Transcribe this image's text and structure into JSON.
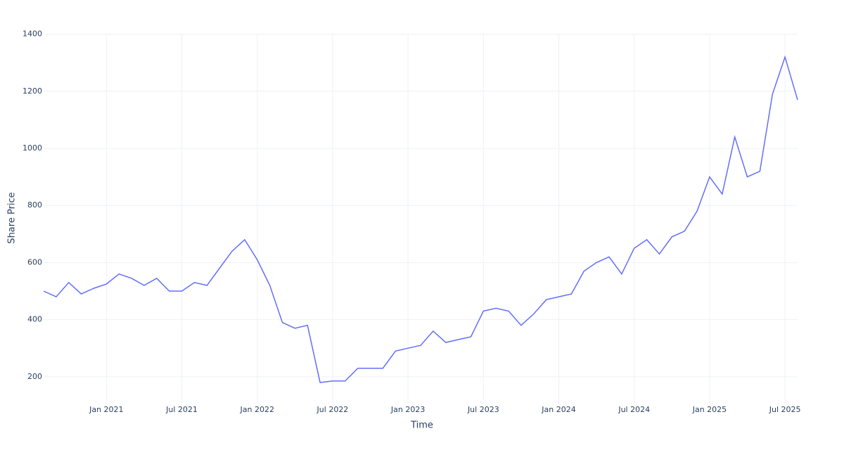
{
  "chart_data": {
    "type": "line",
    "x_label": "Time",
    "y_label": "Share Price",
    "x": [
      "2020-08",
      "2020-09",
      "2020-10",
      "2020-11",
      "2020-12",
      "2021-01",
      "2021-02",
      "2021-03",
      "2021-04",
      "2021-05",
      "2021-06",
      "2021-07",
      "2021-08",
      "2021-09",
      "2021-10",
      "2021-11",
      "2021-12",
      "2022-01",
      "2022-02",
      "2022-03",
      "2022-04",
      "2022-05",
      "2022-06",
      "2022-07",
      "2022-08",
      "2022-09",
      "2022-10",
      "2022-11",
      "2022-12",
      "2023-01",
      "2023-02",
      "2023-03",
      "2023-04",
      "2023-05",
      "2023-06",
      "2023-07",
      "2023-08",
      "2023-09",
      "2023-10",
      "2023-11",
      "2023-12",
      "2024-01",
      "2024-02",
      "2024-03",
      "2024-04",
      "2024-05",
      "2024-06",
      "2024-07",
      "2024-08",
      "2024-09",
      "2024-10",
      "2024-11",
      "2024-12",
      "2025-01",
      "2025-02",
      "2025-03",
      "2025-04",
      "2025-05",
      "2025-06",
      "2025-07",
      "2025-08"
    ],
    "series": [
      {
        "color": "#636efa",
        "values": [
          500,
          480,
          530,
          490,
          510,
          525,
          560,
          545,
          520,
          545,
          500,
          500,
          530,
          520,
          580,
          640,
          680,
          610,
          520,
          390,
          370,
          380,
          180,
          185,
          185,
          230,
          230,
          230,
          290,
          300,
          310,
          360,
          320,
          330,
          340,
          430,
          440,
          430,
          380,
          420,
          470,
          480,
          490,
          570,
          600,
          620,
          560,
          650,
          680,
          630,
          690,
          710,
          780,
          900,
          840,
          1040,
          900,
          920,
          1190,
          1320,
          1170
        ]
      }
    ],
    "xlim": [
      "2020-08",
      "2025-08"
    ],
    "xticks": [
      {
        "value": "2021-01",
        "label": "Jan 2021"
      },
      {
        "value": "2021-07",
        "label": "Jul 2021"
      },
      {
        "value": "2022-01",
        "label": "Jan 2022"
      },
      {
        "value": "2022-07",
        "label": "Jul 2022"
      },
      {
        "value": "2023-01",
        "label": "Jan 2023"
      },
      {
        "value": "2023-07",
        "label": "Jul 2023"
      },
      {
        "value": "2024-01",
        "label": "Jan 2024"
      },
      {
        "value": "2024-07",
        "label": "Jul 2024"
      },
      {
        "value": "2025-01",
        "label": "Jan 2025"
      },
      {
        "value": "2025-07",
        "label": "Jul 2025"
      }
    ],
    "ylim": [
      106,
      1399
    ],
    "yticks": [
      200,
      400,
      600,
      800,
      1000,
      1200,
      1400
    ],
    "grid": true
  }
}
